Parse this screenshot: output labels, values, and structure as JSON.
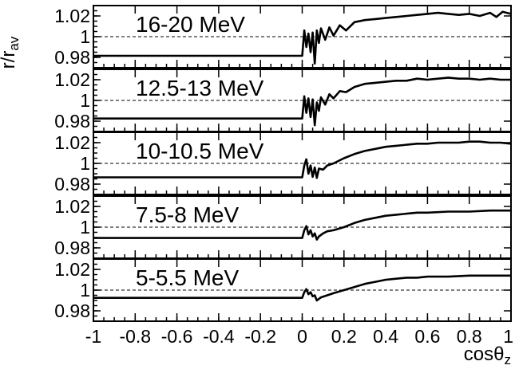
{
  "chart_data": {
    "type": "line",
    "xlabel": "cos",
    "xlabel_symbol": "θ",
    "xlabel_sub": "z",
    "ylabel": "r/r",
    "ylabel_sub": "av",
    "xlim": [
      -1,
      1
    ],
    "ylim": [
      0.97,
      1.03
    ],
    "x_ticks": [
      -1,
      -0.8,
      -0.6,
      -0.4,
      -0.2,
      0,
      0.2,
      0.4,
      0.6,
      0.8,
      1
    ],
    "x_tick_labels": [
      "-1",
      "-0.8",
      "-0.6",
      "-0.4",
      "-0.2",
      "0",
      "0.2",
      "0.4",
      "0.6",
      "0.8",
      "1"
    ],
    "y_ticks": [
      0.98,
      1.0,
      1.02
    ],
    "y_tick_labels": [
      "0.98",
      "1",
      "1.02"
    ],
    "reference_line": 1.0,
    "panels": [
      {
        "label": "16-20 MeV",
        "night_start": 0.0,
        "day_value": 0.9815,
        "series": [
          {
            "x": 0.0,
            "y": 0.9815
          },
          {
            "x": 0.01,
            "y": 1.006
          },
          {
            "x": 0.02,
            "y": 0.99
          },
          {
            "x": 0.03,
            "y": 1.003
          },
          {
            "x": 0.04,
            "y": 0.985
          },
          {
            "x": 0.05,
            "y": 1.004
          },
          {
            "x": 0.06,
            "y": 0.974
          },
          {
            "x": 0.07,
            "y": 1.006
          },
          {
            "x": 0.08,
            "y": 0.994
          },
          {
            "x": 0.09,
            "y": 1.008
          },
          {
            "x": 0.11,
            "y": 0.997
          },
          {
            "x": 0.13,
            "y": 1.009
          },
          {
            "x": 0.15,
            "y": 1.001
          },
          {
            "x": 0.18,
            "y": 1.011
          },
          {
            "x": 0.21,
            "y": 1.006
          },
          {
            "x": 0.25,
            "y": 1.014
          },
          {
            "x": 0.3,
            "y": 1.016
          },
          {
            "x": 0.35,
            "y": 1.017
          },
          {
            "x": 0.4,
            "y": 1.018
          },
          {
            "x": 0.45,
            "y": 1.019
          },
          {
            "x": 0.5,
            "y": 1.02
          },
          {
            "x": 0.55,
            "y": 1.021
          },
          {
            "x": 0.6,
            "y": 1.022
          },
          {
            "x": 0.65,
            "y": 1.023
          },
          {
            "x": 0.7,
            "y": 1.022
          },
          {
            "x": 0.75,
            "y": 1.021
          },
          {
            "x": 0.8,
            "y": 1.022
          },
          {
            "x": 0.85,
            "y": 1.02
          },
          {
            "x": 0.9,
            "y": 1.023
          },
          {
            "x": 0.93,
            "y": 1.019
          },
          {
            "x": 0.96,
            "y": 1.024
          },
          {
            "x": 1.0,
            "y": 1.022
          }
        ]
      },
      {
        "label": "12.5-13 MeV",
        "night_start": 0.0,
        "day_value": 0.9825,
        "series": [
          {
            "x": 0.0,
            "y": 0.9825
          },
          {
            "x": 0.01,
            "y": 1.004
          },
          {
            "x": 0.02,
            "y": 0.988
          },
          {
            "x": 0.03,
            "y": 1.002
          },
          {
            "x": 0.04,
            "y": 0.984
          },
          {
            "x": 0.05,
            "y": 1.001
          },
          {
            "x": 0.06,
            "y": 0.976
          },
          {
            "x": 0.07,
            "y": 0.998
          },
          {
            "x": 0.08,
            "y": 0.99
          },
          {
            "x": 0.09,
            "y": 1.003
          },
          {
            "x": 0.11,
            "y": 0.996
          },
          {
            "x": 0.13,
            "y": 1.006
          },
          {
            "x": 0.15,
            "y": 1.002
          },
          {
            "x": 0.18,
            "y": 1.009
          },
          {
            "x": 0.21,
            "y": 1.008
          },
          {
            "x": 0.25,
            "y": 1.013
          },
          {
            "x": 0.3,
            "y": 1.016
          },
          {
            "x": 0.35,
            "y": 1.017
          },
          {
            "x": 0.4,
            "y": 1.018
          },
          {
            "x": 0.45,
            "y": 1.019
          },
          {
            "x": 0.5,
            "y": 1.019
          },
          {
            "x": 0.55,
            "y": 1.021
          },
          {
            "x": 0.6,
            "y": 1.02
          },
          {
            "x": 0.65,
            "y": 1.021
          },
          {
            "x": 0.7,
            "y": 1.022
          },
          {
            "x": 0.75,
            "y": 1.021
          },
          {
            "x": 0.8,
            "y": 1.021
          },
          {
            "x": 0.85,
            "y": 1.02
          },
          {
            "x": 0.9,
            "y": 1.021
          },
          {
            "x": 0.95,
            "y": 1.02
          },
          {
            "x": 1.0,
            "y": 1.02
          }
        ]
      },
      {
        "label": "10-10.5 MeV",
        "night_start": 0.0,
        "day_value": 0.9865,
        "series": [
          {
            "x": 0.0,
            "y": 0.9865
          },
          {
            "x": 0.01,
            "y": 0.998
          },
          {
            "x": 0.02,
            "y": 1.004
          },
          {
            "x": 0.03,
            "y": 0.99
          },
          {
            "x": 0.04,
            "y": 0.998
          },
          {
            "x": 0.05,
            "y": 0.987
          },
          {
            "x": 0.06,
            "y": 0.996
          },
          {
            "x": 0.07,
            "y": 0.986
          },
          {
            "x": 0.08,
            "y": 0.995
          },
          {
            "x": 0.1,
            "y": 0.994
          },
          {
            "x": 0.12,
            "y": 0.998
          },
          {
            "x": 0.15,
            "y": 1.0
          },
          {
            "x": 0.2,
            "y": 1.005
          },
          {
            "x": 0.25,
            "y": 1.009
          },
          {
            "x": 0.3,
            "y": 1.012
          },
          {
            "x": 0.35,
            "y": 1.014
          },
          {
            "x": 0.4,
            "y": 1.016
          },
          {
            "x": 0.45,
            "y": 1.017
          },
          {
            "x": 0.5,
            "y": 1.018
          },
          {
            "x": 0.55,
            "y": 1.019
          },
          {
            "x": 0.6,
            "y": 1.019
          },
          {
            "x": 0.65,
            "y": 1.02
          },
          {
            "x": 0.7,
            "y": 1.02
          },
          {
            "x": 0.75,
            "y": 1.02
          },
          {
            "x": 0.8,
            "y": 1.021
          },
          {
            "x": 0.85,
            "y": 1.021
          },
          {
            "x": 0.9,
            "y": 1.02
          },
          {
            "x": 0.95,
            "y": 1.02
          },
          {
            "x": 1.0,
            "y": 1.019
          }
        ]
      },
      {
        "label": "7.5-8 MeV",
        "night_start": 0.0,
        "day_value": 0.9895,
        "series": [
          {
            "x": 0.0,
            "y": 0.9895
          },
          {
            "x": 0.01,
            "y": 0.997
          },
          {
            "x": 0.02,
            "y": 1.001
          },
          {
            "x": 0.03,
            "y": 0.993
          },
          {
            "x": 0.04,
            "y": 0.997
          },
          {
            "x": 0.05,
            "y": 0.991
          },
          {
            "x": 0.06,
            "y": 0.994
          },
          {
            "x": 0.07,
            "y": 0.988
          },
          {
            "x": 0.08,
            "y": 0.991
          },
          {
            "x": 0.1,
            "y": 0.994
          },
          {
            "x": 0.12,
            "y": 0.996
          },
          {
            "x": 0.15,
            "y": 0.997
          },
          {
            "x": 0.2,
            "y": 1.0
          },
          {
            "x": 0.25,
            "y": 1.004
          },
          {
            "x": 0.3,
            "y": 1.007
          },
          {
            "x": 0.35,
            "y": 1.009
          },
          {
            "x": 0.4,
            "y": 1.011
          },
          {
            "x": 0.45,
            "y": 1.012
          },
          {
            "x": 0.5,
            "y": 1.013
          },
          {
            "x": 0.55,
            "y": 1.014
          },
          {
            "x": 0.6,
            "y": 1.014
          },
          {
            "x": 0.7,
            "y": 1.015
          },
          {
            "x": 0.8,
            "y": 1.015
          },
          {
            "x": 0.9,
            "y": 1.016
          },
          {
            "x": 1.0,
            "y": 1.016
          }
        ]
      },
      {
        "label": "5-5.5 MeV",
        "night_start": 0.0,
        "day_value": 0.9925,
        "series": [
          {
            "x": 0.0,
            "y": 0.9925
          },
          {
            "x": 0.01,
            "y": 0.998
          },
          {
            "x": 0.02,
            "y": 1.001
          },
          {
            "x": 0.03,
            "y": 0.996
          },
          {
            "x": 0.04,
            "y": 0.998
          },
          {
            "x": 0.05,
            "y": 0.994
          },
          {
            "x": 0.06,
            "y": 0.995
          },
          {
            "x": 0.07,
            "y": 0.99
          },
          {
            "x": 0.09,
            "y": 0.993
          },
          {
            "x": 0.12,
            "y": 0.995
          },
          {
            "x": 0.15,
            "y": 0.997
          },
          {
            "x": 0.2,
            "y": 1.0
          },
          {
            "x": 0.25,
            "y": 1.003
          },
          {
            "x": 0.3,
            "y": 1.006
          },
          {
            "x": 0.35,
            "y": 1.008
          },
          {
            "x": 0.4,
            "y": 1.01
          },
          {
            "x": 0.45,
            "y": 1.011
          },
          {
            "x": 0.5,
            "y": 1.012
          },
          {
            "x": 0.55,
            "y": 1.012
          },
          {
            "x": 0.6,
            "y": 1.013
          },
          {
            "x": 0.7,
            "y": 1.013
          },
          {
            "x": 0.8,
            "y": 1.014
          },
          {
            "x": 0.9,
            "y": 1.014
          },
          {
            "x": 1.0,
            "y": 1.014
          }
        ]
      }
    ]
  }
}
